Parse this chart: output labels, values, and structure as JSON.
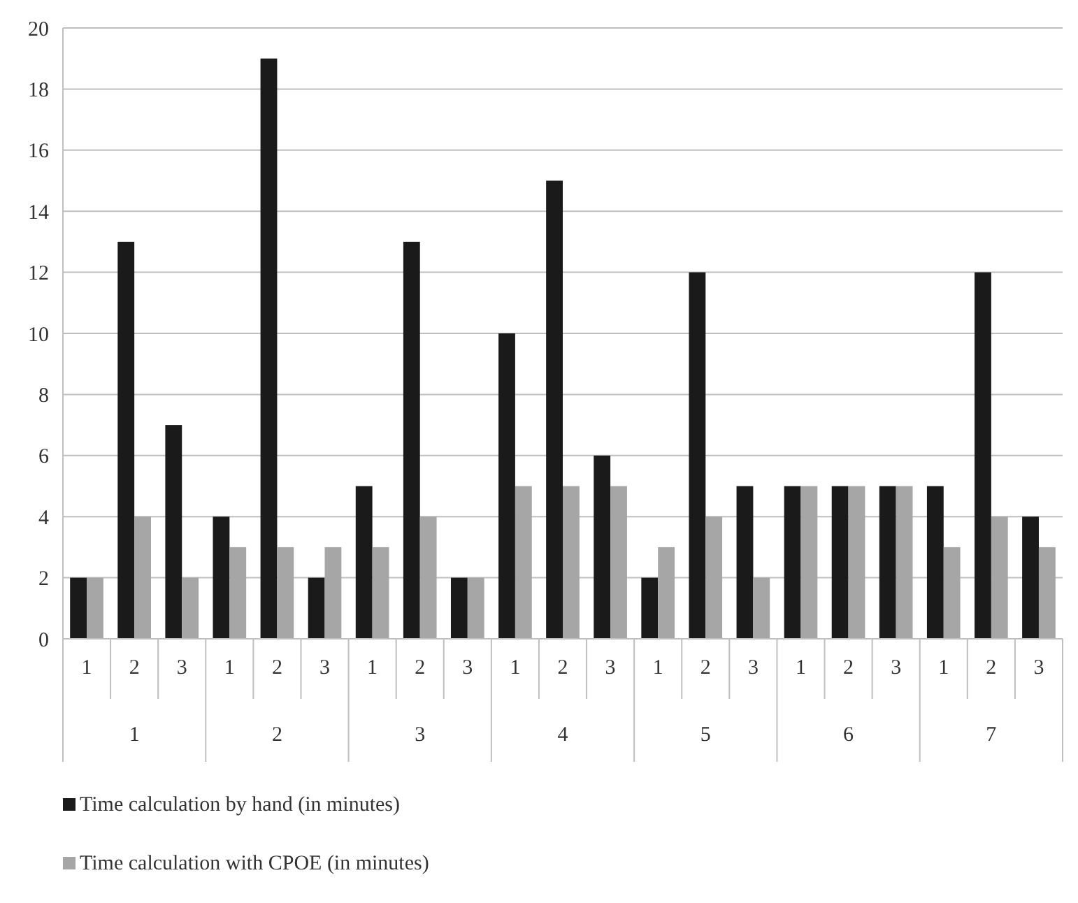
{
  "chart_data": {
    "type": "bar",
    "categories": [
      "1",
      "2",
      "3",
      "1",
      "2",
      "3",
      "1",
      "2",
      "3",
      "1",
      "2",
      "3",
      "1",
      "2",
      "3",
      "1",
      "2",
      "3",
      "1",
      "2",
      "3"
    ],
    "annotations": [
      "1",
      "2",
      "3",
      "4",
      "5",
      "6",
      "7"
    ],
    "series": [
      {
        "name": "Time calculation by hand (in minutes)",
        "color": "#1a1a1a",
        "values": [
          2,
          13,
          7,
          4,
          19,
          2,
          5,
          13,
          2,
          10,
          15,
          6,
          2,
          12,
          5,
          5,
          5,
          5,
          5,
          12,
          4
        ]
      },
      {
        "name": "Time calculation with CPOE (in minutes)",
        "color": "#a6a6a6",
        "values": [
          2,
          4,
          2,
          3,
          3,
          3,
          3,
          4,
          2,
          5,
          5,
          5,
          3,
          4,
          2,
          5,
          5,
          5,
          3,
          4,
          3
        ]
      }
    ],
    "ylim": [
      0,
      20
    ],
    "yticks": [
      0,
      2,
      4,
      6,
      8,
      10,
      12,
      14,
      16,
      18,
      20
    ],
    "grid": "y",
    "legend": "bottom"
  }
}
